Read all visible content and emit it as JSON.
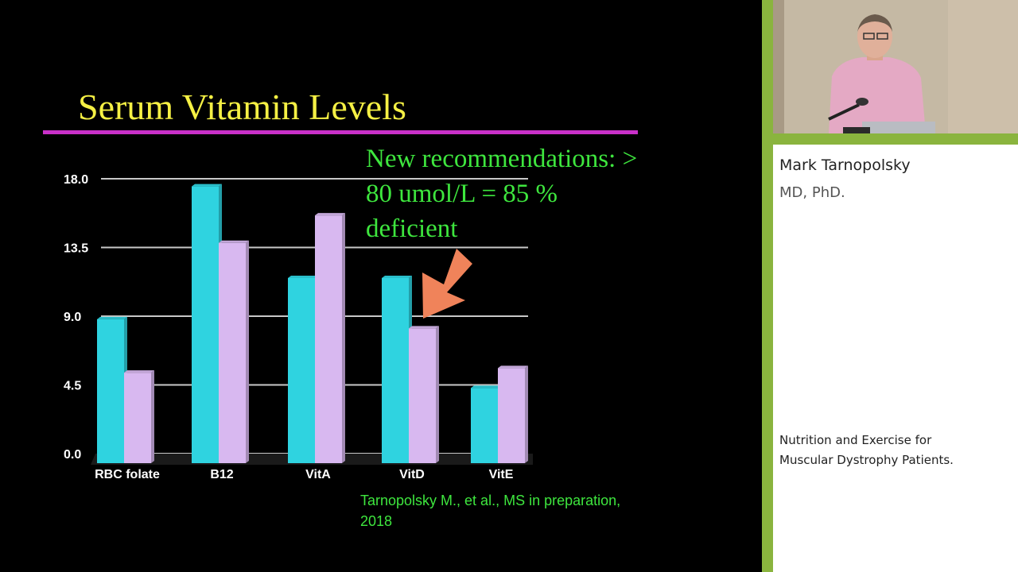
{
  "slide": {
    "title": "Serum Vitamin Levels",
    "annotation_lines": [
      "New recommendations:  >",
      "80 umol/L = 85 %",
      "deficient"
    ],
    "citation_lines": [
      "Tarnopolsky M., et al., MS in preparation,",
      "2018"
    ]
  },
  "chart_data": {
    "type": "bar",
    "categories": [
      "RBC folate",
      "B12",
      "VitA",
      "VitD",
      "VitE"
    ],
    "series": [
      {
        "color": "#2fd3e0",
        "values": [
          8.8,
          17.5,
          11.5,
          11.5,
          4.3
        ]
      },
      {
        "color": "#d8b8f0",
        "values": [
          5.3,
          13.8,
          15.6,
          8.2,
          5.6
        ]
      }
    ],
    "yticks": [
      "0.0",
      "4.5",
      "9.0",
      "13.5",
      "18.0"
    ],
    "ylim": [
      0,
      18
    ],
    "grid": true,
    "title": "",
    "xlabel": "",
    "ylabel": ""
  },
  "colors": {
    "title": "#f5f044",
    "annotation": "#3ee63e",
    "arrow": "#f0835a",
    "rule": "#c930c9",
    "sidebar_accent": "#8ab43e"
  },
  "sidebar": {
    "speaker_name": "Mark Tarnopolsky",
    "speaker_credentials": "MD, PhD.",
    "talk_title_lines": [
      "Nutrition and Exercise for",
      "Muscular Dystrophy Patients."
    ]
  }
}
